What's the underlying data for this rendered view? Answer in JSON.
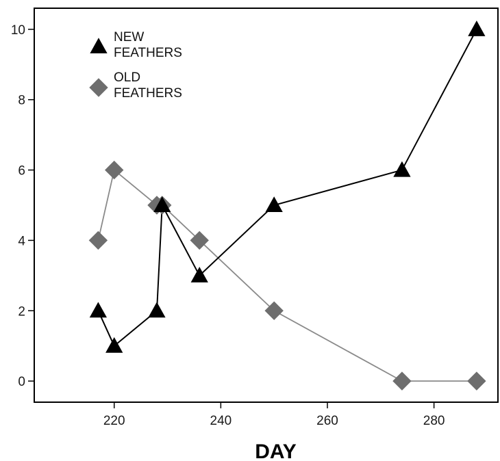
{
  "chart_data": {
    "type": "line",
    "title": "",
    "xlabel": "DAY",
    "ylabel": "",
    "xlim": [
      205,
      292
    ],
    "ylim": [
      -0.6,
      10.6
    ],
    "x_ticks": [
      220,
      240,
      260,
      280
    ],
    "y_ticks": [
      0,
      2,
      4,
      6,
      8,
      10
    ],
    "grid": false,
    "legend_position": "top-left",
    "series": [
      {
        "name_lines": [
          "NEW",
          "FEATHERS"
        ],
        "marker": "triangle",
        "marker_color": "#000000",
        "line_color": "#000000",
        "points": [
          {
            "x": 217,
            "y": 2
          },
          {
            "x": 220,
            "y": 1
          },
          {
            "x": 228,
            "y": 2
          },
          {
            "x": 229,
            "y": 5
          },
          {
            "x": 236,
            "y": 3
          },
          {
            "x": 250,
            "y": 5
          },
          {
            "x": 274,
            "y": 6
          },
          {
            "x": 288,
            "y": 10
          }
        ]
      },
      {
        "name_lines": [
          "OLD",
          "FEATHERS"
        ],
        "marker": "diamond",
        "marker_color": "#6e6e6e",
        "line_color": "#8a8a8a",
        "points": [
          {
            "x": 217,
            "y": 4
          },
          {
            "x": 220,
            "y": 6
          },
          {
            "x": 228,
            "y": 5
          },
          {
            "x": 229,
            "y": 5
          },
          {
            "x": 236,
            "y": 4
          },
          {
            "x": 250,
            "y": 2
          },
          {
            "x": 274,
            "y": 0
          },
          {
            "x": 288,
            "y": 0
          }
        ]
      }
    ]
  }
}
